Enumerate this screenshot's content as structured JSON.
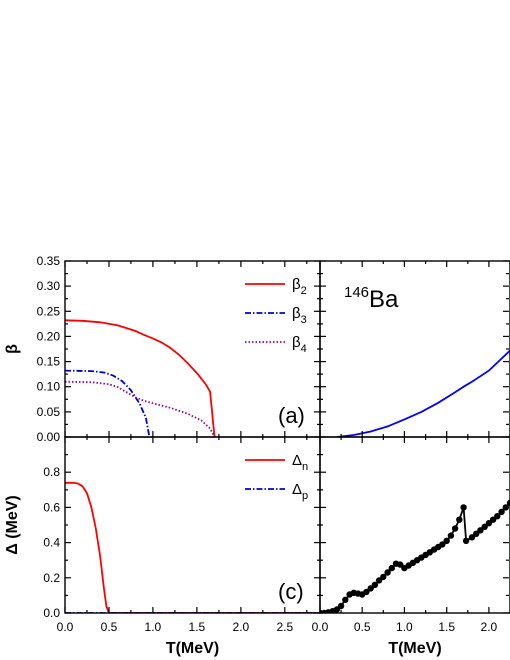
{
  "chart_data": [
    {
      "id": "a",
      "type": "line",
      "panel_label": "(a)",
      "xlabel": "",
      "ylabel": "β",
      "xlim": [
        0,
        2.9
      ],
      "ylim": [
        0,
        0.35
      ],
      "x_ticks": [
        0,
        0.5,
        1.0,
        1.5,
        2.0,
        2.5
      ],
      "y_ticks": [
        0.0,
        0.05,
        0.1,
        0.15,
        0.2,
        0.25,
        0.3,
        0.35
      ],
      "y_tick_labels": [
        "0.00",
        "0.05",
        "0.10",
        "0.15",
        "0.20",
        "0.25",
        "0.30",
        "0.35"
      ],
      "legend_position": "top-right",
      "series": [
        {
          "name": "β",
          "sub": "2",
          "style": "solid",
          "color": "#ff0000",
          "points": [
            [
              0,
              0.232
            ],
            [
              0.2,
              0.231
            ],
            [
              0.4,
              0.228
            ],
            [
              0.6,
              0.222
            ],
            [
              0.8,
              0.211
            ],
            [
              0.9,
              0.203
            ],
            [
              1.0,
              0.196
            ],
            [
              1.1,
              0.188
            ],
            [
              1.2,
              0.177
            ],
            [
              1.3,
              0.163
            ],
            [
              1.4,
              0.146
            ],
            [
              1.5,
              0.127
            ],
            [
              1.6,
              0.105
            ],
            [
              1.65,
              0.09
            ],
            [
              1.7,
              0.0
            ]
          ]
        },
        {
          "name": "β",
          "sub": "3",
          "style": "dashdot",
          "color": "#0000cc",
          "points": [
            [
              0,
              0.132
            ],
            [
              0.3,
              0.131
            ],
            [
              0.45,
              0.128
            ],
            [
              0.55,
              0.122
            ],
            [
              0.65,
              0.111
            ],
            [
              0.75,
              0.093
            ],
            [
              0.85,
              0.066
            ],
            [
              0.92,
              0.038
            ],
            [
              0.96,
              0.0
            ]
          ]
        },
        {
          "name": "β",
          "sub": "4",
          "style": "dotted",
          "color": "#990099",
          "points": [
            [
              0,
              0.11
            ],
            [
              0.3,
              0.109
            ],
            [
              0.5,
              0.105
            ],
            [
              0.6,
              0.099
            ],
            [
              0.7,
              0.089
            ],
            [
              0.8,
              0.079
            ],
            [
              0.9,
              0.072
            ],
            [
              1.0,
              0.067
            ],
            [
              1.2,
              0.058
            ],
            [
              1.4,
              0.046
            ],
            [
              1.55,
              0.033
            ],
            [
              1.65,
              0.017
            ],
            [
              1.7,
              0.0
            ]
          ]
        }
      ]
    },
    {
      "id": "b",
      "type": "line",
      "panel_label": "",
      "annotation": {
        "mass": "146",
        "symbol": "Ba"
      },
      "xlabel": "",
      "ylabel": "",
      "xlim": [
        0,
        2.25
      ],
      "ylim": [
        0,
        0.35
      ],
      "x_ticks": [
        0,
        0.5,
        1.0,
        1.5,
        2.0
      ],
      "series": [
        {
          "name": "",
          "style": "solid",
          "color": "#0000ff",
          "points": [
            [
              0.2,
              0.0
            ],
            [
              0.4,
              0.004
            ],
            [
              0.6,
              0.011
            ],
            [
              0.8,
              0.021
            ],
            [
              1.0,
              0.035
            ],
            [
              1.2,
              0.05
            ],
            [
              1.4,
              0.068
            ],
            [
              1.6,
              0.089
            ],
            [
              1.7,
              0.1
            ],
            [
              1.8,
              0.11
            ],
            [
              2.0,
              0.132
            ],
            [
              2.25,
              0.172
            ]
          ]
        }
      ]
    },
    {
      "id": "c",
      "type": "line",
      "panel_label": "(c)",
      "xlabel": "T(MeV)",
      "ylabel": "Δ (MeV)",
      "xlim": [
        0,
        2.9
      ],
      "ylim": [
        0,
        1.0
      ],
      "x_ticks": [
        0,
        0.5,
        1.0,
        1.5,
        2.0,
        2.5
      ],
      "x_tick_labels": [
        "0.0",
        "0.5",
        "1.0",
        "1.5",
        "2.0",
        "2.5"
      ],
      "y_ticks": [
        0.0,
        0.2,
        0.4,
        0.6,
        0.8
      ],
      "y_tick_labels": [
        "0.0",
        "0.2",
        "0.4",
        "0.6",
        "0.8"
      ],
      "legend_position": "top-right",
      "series": [
        {
          "name": "Δ",
          "sub": "n",
          "style": "solid",
          "color": "#ff0000",
          "points": [
            [
              0,
              0.74
            ],
            [
              0.1,
              0.74
            ],
            [
              0.15,
              0.735
            ],
            [
              0.2,
              0.72
            ],
            [
              0.25,
              0.68
            ],
            [
              0.3,
              0.6
            ],
            [
              0.35,
              0.48
            ],
            [
              0.4,
              0.32
            ],
            [
              0.44,
              0.15
            ],
            [
              0.47,
              0.04
            ],
            [
              0.5,
              0.0
            ],
            [
              2.9,
              0.0
            ]
          ]
        },
        {
          "name": "Δ",
          "sub": "p",
          "style": "dashdot",
          "color": "#0000cc",
          "points": [
            [
              0,
              0.0
            ],
            [
              2.9,
              0.0
            ]
          ]
        }
      ]
    },
    {
      "id": "d",
      "type": "line",
      "panel_label": "",
      "xlabel": "T(MeV)",
      "ylabel": "",
      "xlim": [
        0,
        2.25
      ],
      "ylim": [
        0,
        1.0
      ],
      "x_ticks": [
        0,
        0.5,
        1.0,
        1.5,
        2.0
      ],
      "x_tick_labels": [
        "0.0",
        "0.5",
        "1.0",
        "1.5",
        "2.0"
      ],
      "series": [
        {
          "name": "",
          "style": "solid-markers",
          "color": "#000000",
          "points": [
            [
              0.0,
              0.0
            ],
            [
              0.05,
              0.0
            ],
            [
              0.1,
              0.004
            ],
            [
              0.15,
              0.01
            ],
            [
              0.2,
              0.02
            ],
            [
              0.25,
              0.04
            ],
            [
              0.3,
              0.075
            ],
            [
              0.35,
              0.105
            ],
            [
              0.4,
              0.115
            ],
            [
              0.45,
              0.11
            ],
            [
              0.5,
              0.105
            ],
            [
              0.55,
              0.12
            ],
            [
              0.6,
              0.14
            ],
            [
              0.65,
              0.16
            ],
            [
              0.7,
              0.185
            ],
            [
              0.75,
              0.205
            ],
            [
              0.8,
              0.23
            ],
            [
              0.85,
              0.255
            ],
            [
              0.9,
              0.28
            ],
            [
              0.95,
              0.275
            ],
            [
              1.0,
              0.255
            ],
            [
              1.05,
              0.27
            ],
            [
              1.1,
              0.285
            ],
            [
              1.15,
              0.3
            ],
            [
              1.2,
              0.315
            ],
            [
              1.25,
              0.33
            ],
            [
              1.3,
              0.345
            ],
            [
              1.35,
              0.36
            ],
            [
              1.4,
              0.375
            ],
            [
              1.45,
              0.39
            ],
            [
              1.5,
              0.41
            ],
            [
              1.55,
              0.44
            ],
            [
              1.6,
              0.48
            ],
            [
              1.65,
              0.53
            ],
            [
              1.7,
              0.6
            ],
            [
              1.73,
              0.41
            ],
            [
              1.8,
              0.43
            ],
            [
              1.85,
              0.45
            ],
            [
              1.9,
              0.47
            ],
            [
              1.95,
              0.49
            ],
            [
              2.0,
              0.51
            ],
            [
              2.05,
              0.53
            ],
            [
              2.1,
              0.55
            ],
            [
              2.15,
              0.575
            ],
            [
              2.2,
              0.6
            ],
            [
              2.25,
              0.625
            ]
          ]
        }
      ]
    }
  ]
}
